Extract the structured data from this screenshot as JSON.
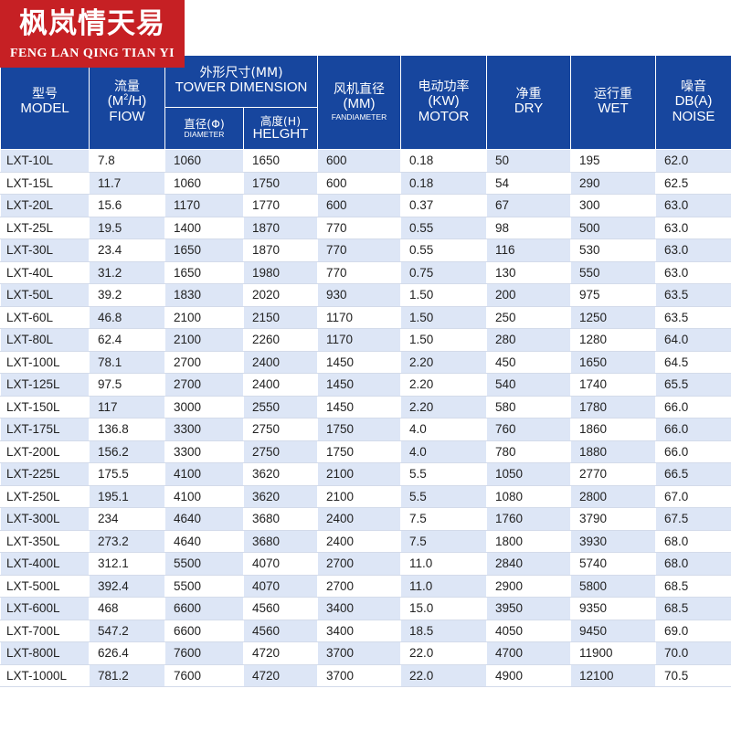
{
  "logo": {
    "cn": "枫岚情天易",
    "en": "FENG LAN QING TIAN YI"
  },
  "header": {
    "model": {
      "cn": "型号",
      "en": "MODEL"
    },
    "flow": {
      "cn": "流量",
      "unit_pre": "(M",
      "unit_sup": "2",
      "unit_post": "/H)",
      "en": "FIOW"
    },
    "tower": {
      "cn": "外形尺寸(MM)",
      "en": "TOWER DIMENSION"
    },
    "diameter": {
      "cn": "直径(Φ)",
      "en": "DIAMETER"
    },
    "height": {
      "cn": "高度(H)",
      "en": "HELGHT"
    },
    "fan": {
      "cn": "风机直径",
      "unit": "(MM)",
      "en": "FANDIAMETER"
    },
    "motor": {
      "cn": "电动功率",
      "unit": "(KW)",
      "en": "MOTOR"
    },
    "dry": {
      "cn": "净重",
      "en": "DRY"
    },
    "wet": {
      "cn": "运行重",
      "en": "WET"
    },
    "noise": {
      "cn": "噪音",
      "unit": "DB(A)",
      "en": "NOISE"
    }
  },
  "rows": [
    [
      "LXT-10L",
      "7.8",
      "1060",
      "1650",
      "600",
      "0.18",
      "50",
      "195",
      "62.0"
    ],
    [
      "LXT-15L",
      "11.7",
      "1060",
      "1750",
      "600",
      "0.18",
      "54",
      "290",
      "62.5"
    ],
    [
      "LXT-20L",
      "15.6",
      "1170",
      "1770",
      "600",
      "0.37",
      "67",
      "300",
      "63.0"
    ],
    [
      "LXT-25L",
      "19.5",
      "1400",
      "1870",
      "770",
      "0.55",
      "98",
      "500",
      "63.0"
    ],
    [
      "LXT-30L",
      "23.4",
      "1650",
      "1870",
      "770",
      "0.55",
      "116",
      "530",
      "63.0"
    ],
    [
      "LXT-40L",
      "31.2",
      "1650",
      "1980",
      "770",
      "0.75",
      "130",
      "550",
      "63.0"
    ],
    [
      "LXT-50L",
      "39.2",
      "1830",
      "2020",
      "930",
      "1.50",
      "200",
      "975",
      "63.5"
    ],
    [
      "LXT-60L",
      "46.8",
      "2100",
      "2150",
      "1170",
      "1.50",
      "250",
      "1250",
      "63.5"
    ],
    [
      "LXT-80L",
      "62.4",
      "2100",
      "2260",
      "1170",
      "1.50",
      "280",
      "1280",
      "64.0"
    ],
    [
      "LXT-100L",
      "78.1",
      "2700",
      "2400",
      "1450",
      "2.20",
      "450",
      "1650",
      "64.5"
    ],
    [
      "LXT-125L",
      "97.5",
      "2700",
      "2400",
      "1450",
      "2.20",
      "540",
      "1740",
      "65.5"
    ],
    [
      "LXT-150L",
      "117",
      "3000",
      "2550",
      "1450",
      "2.20",
      "580",
      "1780",
      "66.0"
    ],
    [
      "LXT-175L",
      "136.8",
      "3300",
      "2750",
      "1750",
      "4.0",
      "760",
      "1860",
      "66.0"
    ],
    [
      "LXT-200L",
      "156.2",
      "3300",
      "2750",
      "1750",
      "4.0",
      "780",
      "1880",
      "66.0"
    ],
    [
      "LXT-225L",
      "175.5",
      "4100",
      "3620",
      "2100",
      "5.5",
      "1050",
      "2770",
      "66.5"
    ],
    [
      "LXT-250L",
      "195.1",
      "4100",
      "3620",
      "2100",
      "5.5",
      "1080",
      "2800",
      "67.0"
    ],
    [
      "LXT-300L",
      "234",
      "4640",
      "3680",
      "2400",
      "7.5",
      "1760",
      "3790",
      "67.5"
    ],
    [
      "LXT-350L",
      "273.2",
      "4640",
      "3680",
      "2400",
      "7.5",
      "1800",
      "3930",
      "68.0"
    ],
    [
      "LXT-400L",
      "312.1",
      "5500",
      "4070",
      "2700",
      "11.0",
      "2840",
      "5740",
      "68.0"
    ],
    [
      "LXT-500L",
      "392.4",
      "5500",
      "4070",
      "2700",
      "11.0",
      "2900",
      "5800",
      "68.5"
    ],
    [
      "LXT-600L",
      "468",
      "6600",
      "4560",
      "3400",
      "15.0",
      "3950",
      "9350",
      "68.5"
    ],
    [
      "LXT-700L",
      "547.2",
      "6600",
      "4560",
      "3400",
      "18.5",
      "4050",
      "9450",
      "69.0"
    ],
    [
      "LXT-800L",
      "626.4",
      "7600",
      "4720",
      "3700",
      "22.0",
      "4700",
      "11900",
      "70.0"
    ],
    [
      "LXT-1000L",
      "781.2",
      "7600",
      "4720",
      "3700",
      "22.0",
      "4900",
      "12100",
      "70.5"
    ]
  ]
}
